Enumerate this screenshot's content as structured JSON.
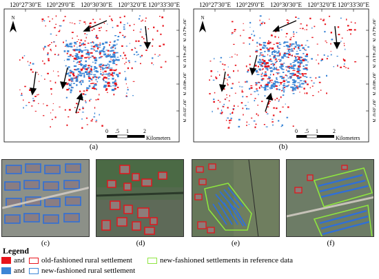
{
  "panel_a": {
    "top_ticks": [
      "120°27'30\"E",
      "120°29'0\"E",
      "120°30'30\"E",
      "120°32'0\"E",
      "120°33'30\"E"
    ],
    "right_ticks": [
      "30°42'0\"N",
      "30°41'0\"N",
      "30°40'0\"N",
      "30°39'0\"N"
    ],
    "north": "N",
    "scale_labels": [
      "0",
      ".5",
      "1",
      "2"
    ],
    "scale_unit": "Kilometers",
    "caption": "(a)"
  },
  "panel_b": {
    "top_ticks": [
      "120°27'30\"E",
      "120°29'0\"E",
      "120°30'30\"E",
      "120°32'0\"E",
      "120°33'30\"E"
    ],
    "right_ticks": [
      "30°42'0\"N",
      "30°41'0\"N",
      "30°40'0\"N",
      "30°39'0\"N"
    ],
    "north": "N",
    "scale_labels": [
      "0",
      ".5",
      "1",
      "2"
    ],
    "scale_unit": "Kilometers",
    "caption": "(b)"
  },
  "photos": [
    "(c)",
    "(d)",
    "(e)",
    "(f)"
  ],
  "legend": {
    "title": "Legend",
    "row1_and": "and",
    "row1_label": "old-fashioned rural settlement",
    "row1_ref_label": "new-fashioned settlements in reference data",
    "row2_and": "and",
    "row2_label": "new-fashioned rural settlement",
    "colors": {
      "old": "#e8141c",
      "new": "#3b86d6",
      "reference": "#8ee53f"
    }
  }
}
